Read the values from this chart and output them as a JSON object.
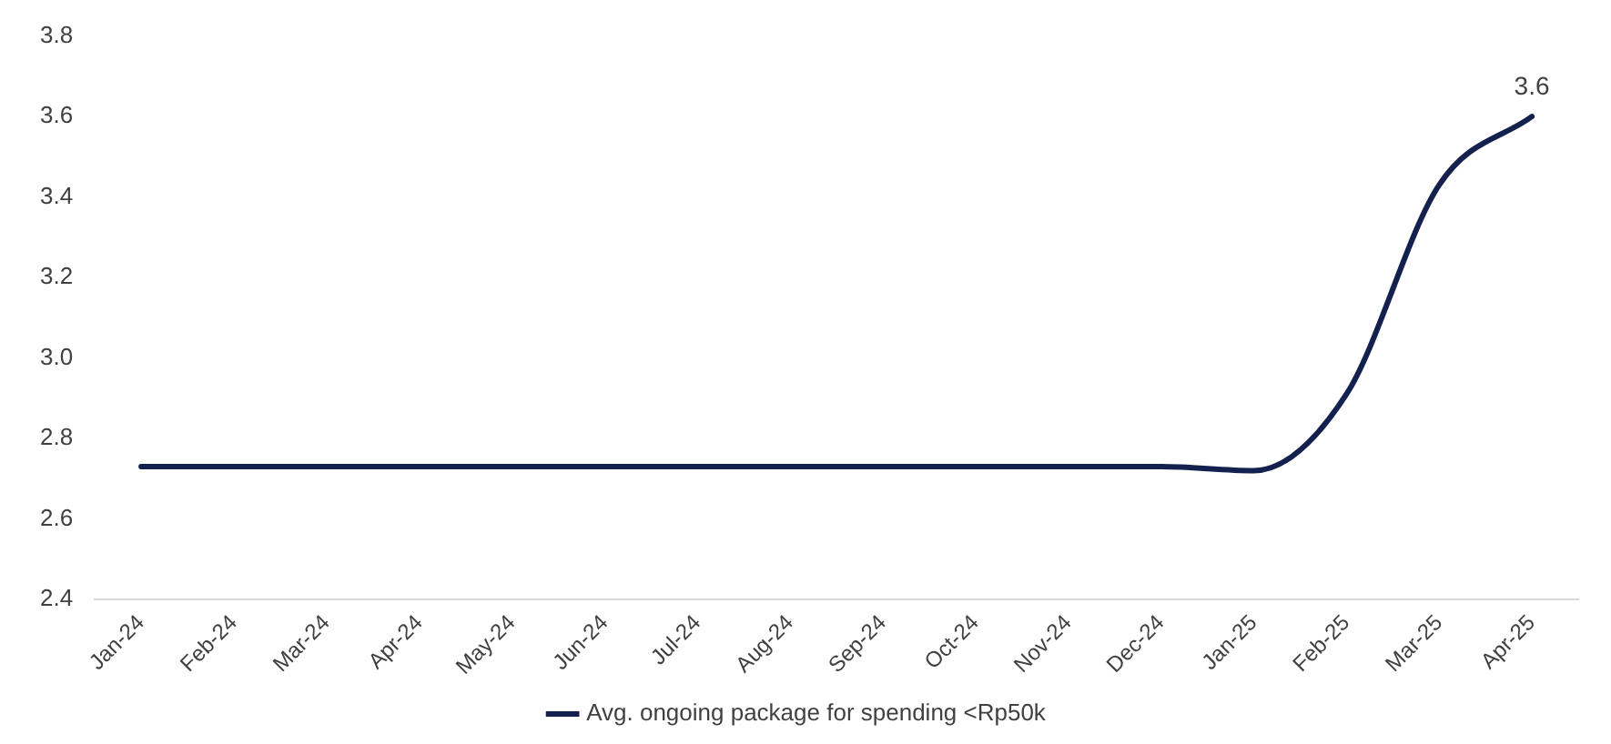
{
  "chart_data": {
    "type": "line",
    "categories": [
      "Jan-24",
      "Feb-24",
      "Mar-24",
      "Apr-24",
      "May-24",
      "Jun-24",
      "Jul-24",
      "Aug-24",
      "Sep-24",
      "Oct-24",
      "Nov-24",
      "Dec-24",
      "Jan-25",
      "Feb-25",
      "Mar-25",
      "Apr-25"
    ],
    "series": [
      {
        "name": "Avg. ongoing package for spending <Rp50k",
        "color": "#14214f",
        "values": [
          2.73,
          2.73,
          2.73,
          2.73,
          2.73,
          2.73,
          2.73,
          2.73,
          2.73,
          2.73,
          2.73,
          2.73,
          2.72,
          2.91,
          3.43,
          3.6
        ],
        "value_labels": [
          null,
          null,
          null,
          null,
          null,
          null,
          null,
          null,
          null,
          null,
          null,
          null,
          null,
          null,
          null,
          "3.6"
        ]
      }
    ],
    "ylim": [
      2.4,
      3.8
    ],
    "yticks": [
      {
        "value": 2.4,
        "label": "2.4"
      },
      {
        "value": 2.6,
        "label": "2.6"
      },
      {
        "value": 2.8,
        "label": "2.8"
      },
      {
        "value": 3.0,
        "label": "3.0"
      },
      {
        "value": 3.2,
        "label": "3.2"
      },
      {
        "value": 3.4,
        "label": "3.4"
      },
      {
        "value": 3.6,
        "label": "3.6"
      },
      {
        "value": 3.8,
        "label": "3.8"
      }
    ],
    "grid": false,
    "legend": "bottom",
    "marker": "none",
    "line_style": "solid"
  }
}
